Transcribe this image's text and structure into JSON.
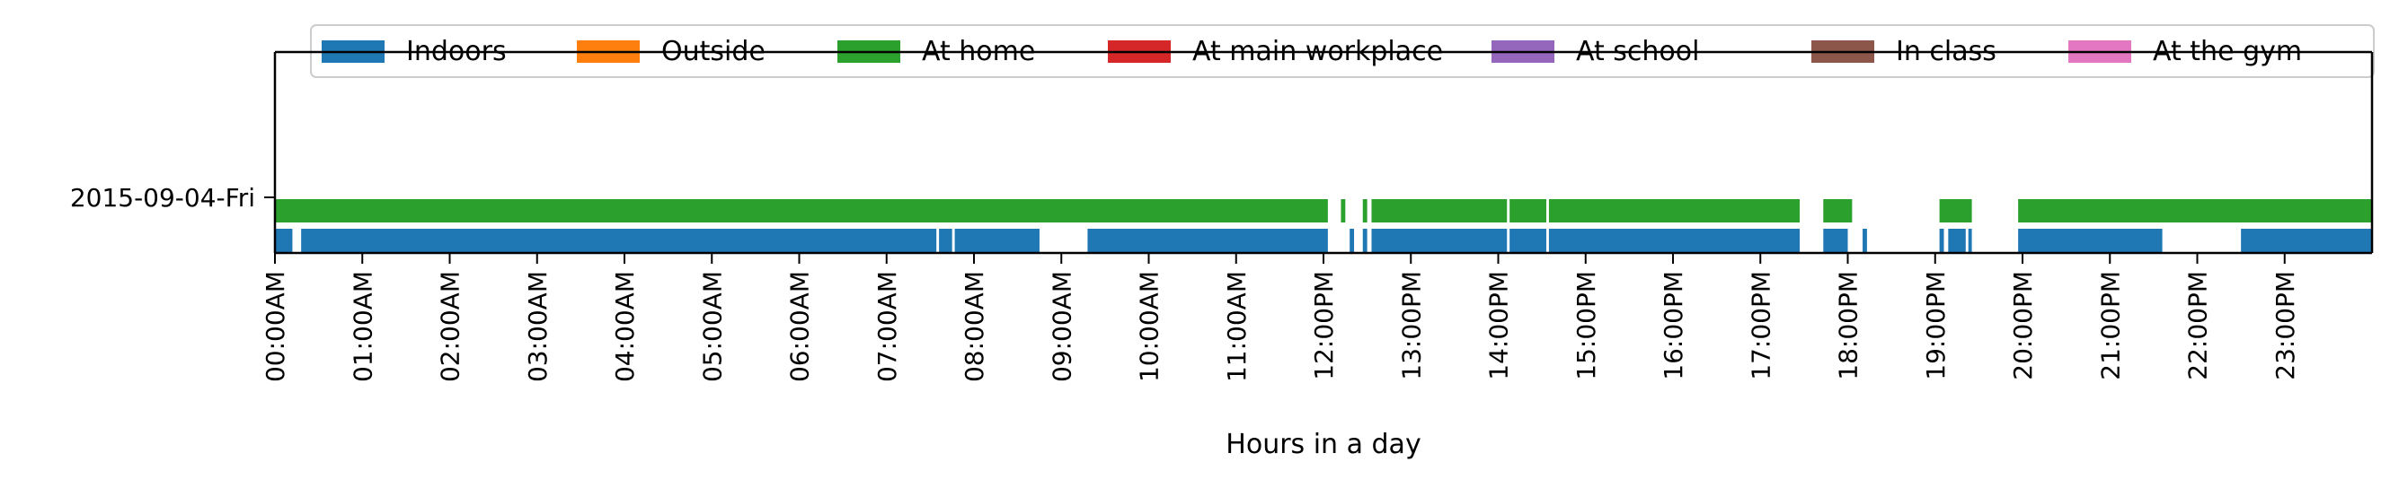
{
  "chart_data": {
    "type": "timeline",
    "title": "",
    "xlabel": "Hours in a day",
    "ylabel": "",
    "xlim": [
      0,
      24
    ],
    "x_tick_labels": [
      "00:00AM",
      "01:00AM",
      "02:00AM",
      "03:00AM",
      "04:00AM",
      "05:00AM",
      "06:00AM",
      "07:00AM",
      "08:00AM",
      "09:00AM",
      "10:00AM",
      "11:00AM",
      "12:00PM",
      "13:00PM",
      "14:00PM",
      "15:00PM",
      "16:00PM",
      "17:00PM",
      "18:00PM",
      "19:00PM",
      "20:00PM",
      "21:00PM",
      "22:00PM",
      "23:00PM"
    ],
    "y_tick_labels": [
      "2015-09-04-Fri"
    ],
    "legend_placement": "top-center",
    "legend": [
      {
        "name": "Indoors",
        "color": "#1f77b4"
      },
      {
        "name": "Outside",
        "color": "#ff7f0e"
      },
      {
        "name": "At home",
        "color": "#2ca02c"
      },
      {
        "name": "At main workplace",
        "color": "#d62728"
      },
      {
        "name": "At school",
        "color": "#9467bd"
      },
      {
        "name": "In class",
        "color": "#8c564b"
      },
      {
        "name": "At the gym",
        "color": "#e377c2"
      }
    ],
    "series": [
      {
        "name": "At home",
        "row": 0,
        "color": "#2ca02c",
        "intervals": [
          [
            0.0,
            12.05
          ],
          [
            12.2,
            12.25
          ],
          [
            12.45,
            12.5
          ],
          [
            12.55,
            14.1
          ],
          [
            14.13,
            14.55
          ],
          [
            14.58,
            17.45
          ],
          [
            17.72,
            18.05
          ],
          [
            19.05,
            19.42
          ],
          [
            19.95,
            24.0
          ]
        ]
      },
      {
        "name": "Indoors",
        "row": 1,
        "color": "#1f77b4",
        "intervals": [
          [
            0.0,
            0.2
          ],
          [
            0.3,
            7.57
          ],
          [
            7.6,
            7.75
          ],
          [
            7.78,
            8.75
          ],
          [
            9.3,
            12.05
          ],
          [
            12.3,
            12.35
          ],
          [
            12.45,
            12.5
          ],
          [
            12.55,
            14.1
          ],
          [
            14.13,
            14.55
          ],
          [
            14.58,
            17.45
          ],
          [
            17.72,
            18.0
          ],
          [
            18.17,
            18.22
          ],
          [
            19.05,
            19.1
          ],
          [
            19.15,
            19.35
          ],
          [
            19.38,
            19.42
          ],
          [
            19.95,
            21.6
          ],
          [
            22.5,
            24.0
          ]
        ]
      }
    ],
    "grid": false
  }
}
